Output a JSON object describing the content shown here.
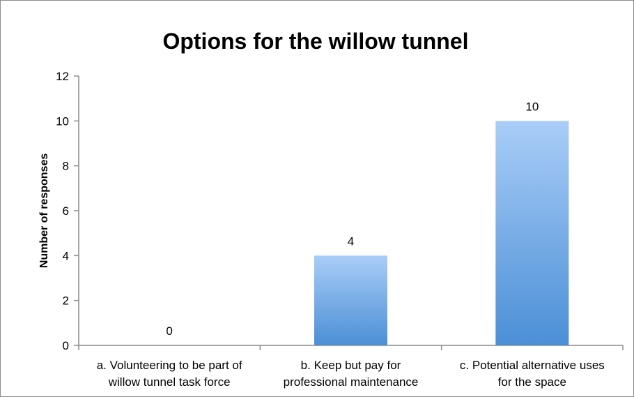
{
  "chart_data": {
    "type": "bar",
    "title": "Options for the willow tunnel",
    "xlabel": "",
    "ylabel": "Number of responses",
    "categories": [
      [
        "a. Volunteering to be part of",
        "willow tunnel task force"
      ],
      [
        "b. Keep but pay for",
        "professional maintenance"
      ],
      [
        "c. Potential alternative uses",
        "for the space"
      ]
    ],
    "values": [
      0,
      4,
      10
    ],
    "ylim": [
      0,
      12
    ],
    "yticks": [
      0,
      2,
      4,
      6,
      8,
      10,
      12
    ],
    "grid": false,
    "legend": "none",
    "colors": {
      "bar_top": "#a9cdf7",
      "bar_bottom": "#4b8fd6",
      "axis": "#8c8c8c"
    }
  }
}
